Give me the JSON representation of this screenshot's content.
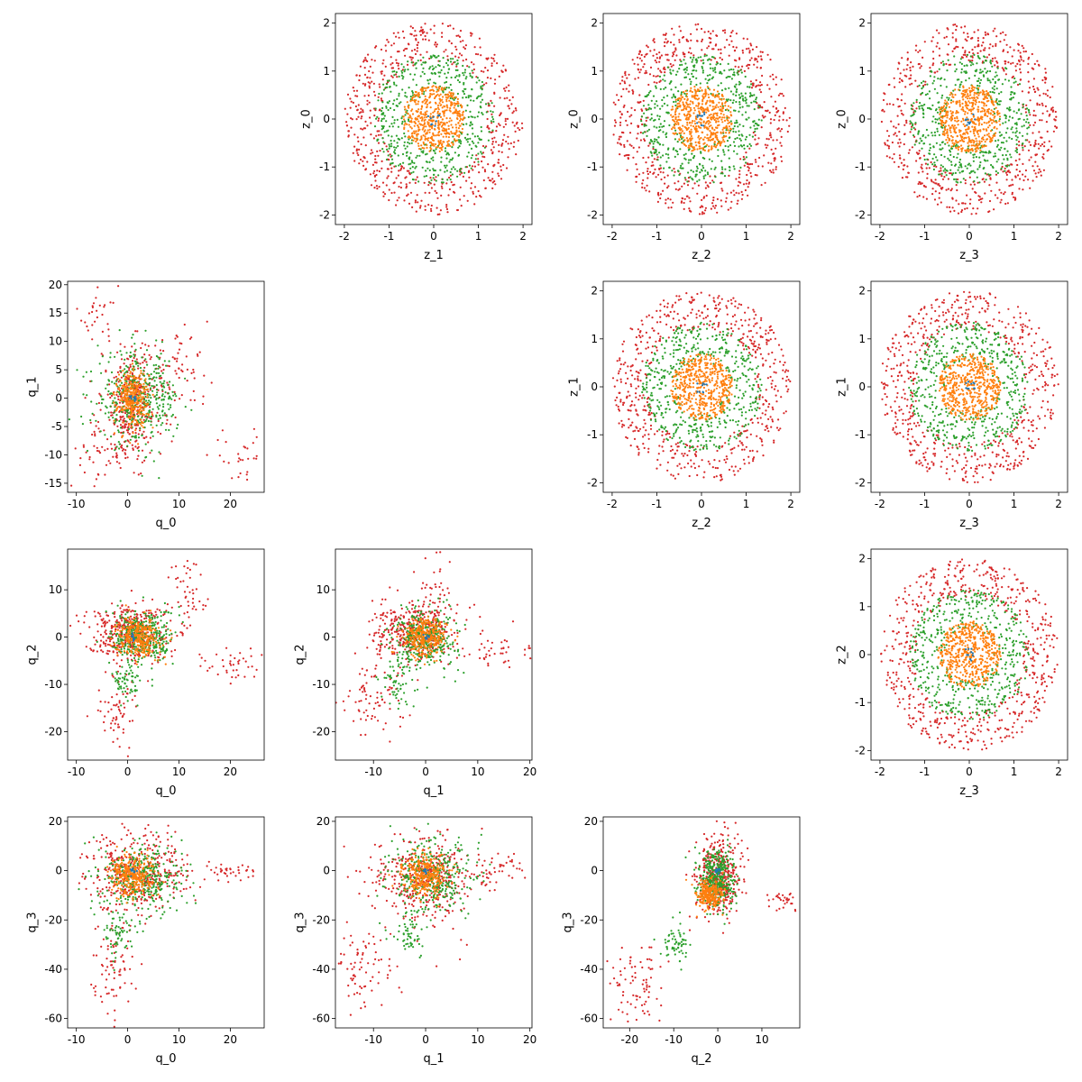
{
  "colors": {
    "red": "#d62728",
    "green": "#2ca02c",
    "orange": "#ff7f0e",
    "blue": "#1f77b4"
  },
  "chart_data": [
    {
      "id": "z0_z1",
      "type": "scatter",
      "kind": "rings",
      "xlabel": "z_1",
      "ylabel": "z_0",
      "xlim": [
        -2.2,
        2.2
      ],
      "ylim": [
        -2.2,
        2.2
      ],
      "xticks": [
        -2,
        -1,
        0,
        1,
        2
      ],
      "yticks": [
        -2,
        -1,
        0,
        1,
        2
      ],
      "series": [
        {
          "color": "red",
          "count": 600,
          "rmin": 1.2,
          "rmax": 2.0
        },
        {
          "color": "green",
          "count": 500,
          "rmin": 0.55,
          "rmax": 1.35
        },
        {
          "color": "orange",
          "count": 500,
          "rmin": 0,
          "rmax": 0.7
        },
        {
          "color": "blue",
          "count": 10,
          "rmin": 0,
          "rmax": 0.15
        }
      ]
    },
    {
      "id": "z0_z2",
      "type": "scatter",
      "kind": "rings",
      "xlabel": "z_2",
      "ylabel": "z_0",
      "xlim": [
        -2.2,
        2.2
      ],
      "ylim": [
        -2.2,
        2.2
      ],
      "xticks": [
        -2,
        -1,
        0,
        1,
        2
      ],
      "yticks": [
        -2,
        -1,
        0,
        1,
        2
      ],
      "series": [
        {
          "color": "red",
          "count": 600,
          "rmin": 1.2,
          "rmax": 2.0
        },
        {
          "color": "green",
          "count": 500,
          "rmin": 0.55,
          "rmax": 1.35
        },
        {
          "color": "orange",
          "count": 500,
          "rmin": 0,
          "rmax": 0.7
        },
        {
          "color": "blue",
          "count": 10,
          "rmin": 0,
          "rmax": 0.15
        }
      ]
    },
    {
      "id": "z0_z3",
      "type": "scatter",
      "kind": "rings",
      "xlabel": "z_3",
      "ylabel": "z_0",
      "xlim": [
        -2.2,
        2.2
      ],
      "ylim": [
        -2.2,
        2.2
      ],
      "xticks": [
        -2,
        -1,
        0,
        1,
        2
      ],
      "yticks": [
        -2,
        -1,
        0,
        1,
        2
      ],
      "series": [
        {
          "color": "red",
          "count": 600,
          "rmin": 1.2,
          "rmax": 2.0
        },
        {
          "color": "green",
          "count": 500,
          "rmin": 0.55,
          "rmax": 1.35
        },
        {
          "color": "orange",
          "count": 500,
          "rmin": 0,
          "rmax": 0.7
        },
        {
          "color": "blue",
          "count": 10,
          "rmin": 0,
          "rmax": 0.15
        }
      ]
    },
    {
      "id": "q1_q0",
      "type": "scatter",
      "kind": "blobs",
      "xlabel": "q_0",
      "ylabel": "q_1",
      "xlim": [
        -11.7,
        26.6
      ],
      "ylim": [
        -16.6,
        20.6
      ],
      "xticks": [
        -10,
        0,
        10,
        20
      ],
      "yticks": [
        -15,
        -10,
        -5,
        0,
        5,
        10,
        15,
        20
      ],
      "series": [
        {
          "color": "red",
          "blobs": [
            [
              1,
              -1,
              3,
              5,
              350
            ],
            [
              -6,
              14,
              2,
              3,
              30
            ],
            [
              22,
              -10,
              3,
              2,
              30
            ],
            [
              10,
              5,
              3,
              3,
              60
            ],
            [
              -5,
              -10,
              3,
              3,
              50
            ]
          ]
        },
        {
          "color": "green",
          "blobs": [
            [
              2,
              0,
              4,
              4,
              400
            ]
          ]
        },
        {
          "color": "orange",
          "blobs": [
            [
              1,
              0,
              1.5,
              2.5,
              300
            ]
          ]
        },
        {
          "color": "blue",
          "blobs": [
            [
              1,
              0,
              0.3,
              0.3,
              10
            ]
          ]
        }
      ]
    },
    {
      "id": "z1_z2",
      "type": "scatter",
      "kind": "rings",
      "xlabel": "z_2",
      "ylabel": "z_1",
      "xlim": [
        -2.2,
        2.2
      ],
      "ylim": [
        -2.2,
        2.2
      ],
      "xticks": [
        -2,
        -1,
        0,
        1,
        2
      ],
      "yticks": [
        -2,
        -1,
        0,
        1,
        2
      ],
      "series": [
        {
          "color": "red",
          "count": 600,
          "rmin": 1.2,
          "rmax": 2.0
        },
        {
          "color": "green",
          "count": 500,
          "rmin": 0.55,
          "rmax": 1.35
        },
        {
          "color": "orange",
          "count": 500,
          "rmin": 0,
          "rmax": 0.7
        },
        {
          "color": "blue",
          "count": 10,
          "rmin": 0,
          "rmax": 0.15
        }
      ]
    },
    {
      "id": "z1_z3",
      "type": "scatter",
      "kind": "rings",
      "xlabel": "z_3",
      "ylabel": "z_1",
      "xlim": [
        -2.2,
        2.2
      ],
      "ylim": [
        -2.2,
        2.2
      ],
      "xticks": [
        -2,
        -1,
        0,
        1,
        2
      ],
      "yticks": [
        -2,
        -1,
        0,
        1,
        2
      ],
      "series": [
        {
          "color": "red",
          "count": 600,
          "rmin": 1.2,
          "rmax": 2.0
        },
        {
          "color": "green",
          "count": 500,
          "rmin": 0.55,
          "rmax": 1.35
        },
        {
          "color": "orange",
          "count": 500,
          "rmin": 0,
          "rmax": 0.7
        },
        {
          "color": "blue",
          "count": 10,
          "rmin": 0,
          "rmax": 0.15
        }
      ]
    },
    {
      "id": "q2_q0",
      "type": "scatter",
      "kind": "blobs",
      "xlabel": "q_0",
      "ylabel": "q_2",
      "xlim": [
        -11.7,
        26.6
      ],
      "ylim": [
        -26.0,
        18.6
      ],
      "xticks": [
        -10,
        0,
        10,
        20
      ],
      "yticks": [
        -20,
        -10,
        0,
        10
      ],
      "series": [
        {
          "color": "red",
          "blobs": [
            [
              0,
              1,
              4,
              3,
              400
            ],
            [
              -2,
              -16,
              2,
              4,
              60
            ],
            [
              12,
              8,
              2,
              4,
              50
            ],
            [
              20,
              -6,
              3,
              2,
              40
            ]
          ]
        },
        {
          "color": "green",
          "blobs": [
            [
              3,
              0,
              3,
              3,
              350
            ],
            [
              0,
              -10,
              1.5,
              2,
              60
            ]
          ]
        },
        {
          "color": "orange",
          "blobs": [
            [
              2,
              0,
              2,
              2,
              300
            ]
          ]
        },
        {
          "color": "blue",
          "blobs": [
            [
              1,
              0,
              0.3,
              0.3,
              10
            ]
          ]
        }
      ]
    },
    {
      "id": "q2_q1",
      "type": "scatter",
      "kind": "blobs",
      "xlabel": "q_1",
      "ylabel": "q_2",
      "xlim": [
        -17.3,
        20.4
      ],
      "ylim": [
        -26.0,
        18.6
      ],
      "xticks": [
        -10,
        0,
        10,
        20
      ],
      "yticks": [
        -20,
        -10,
        0,
        10
      ],
      "series": [
        {
          "color": "red",
          "blobs": [
            [
              -2,
              1,
              4,
              3,
              400
            ],
            [
              -10,
              -12,
              3,
              5,
              80
            ],
            [
              2,
              10,
              1.5,
              4,
              40
            ],
            [
              14,
              -3,
              3,
              2,
              40
            ]
          ]
        },
        {
          "color": "green",
          "blobs": [
            [
              0,
              0,
              3,
              3,
              350
            ],
            [
              -5,
              -10,
              2,
              3,
              60
            ]
          ]
        },
        {
          "color": "orange",
          "blobs": [
            [
              0,
              0,
              2,
              2,
              300
            ]
          ]
        },
        {
          "color": "blue",
          "blobs": [
            [
              0,
              0,
              0.3,
              0.3,
              10
            ]
          ]
        }
      ]
    },
    {
      "id": "z2_z3",
      "type": "scatter",
      "kind": "rings",
      "xlabel": "z_3",
      "ylabel": "z_2",
      "xlim": [
        -2.2,
        2.2
      ],
      "ylim": [
        -2.2,
        2.2
      ],
      "xticks": [
        -2,
        -1,
        0,
        1,
        2
      ],
      "yticks": [
        -2,
        -1,
        0,
        1,
        2
      ],
      "series": [
        {
          "color": "red",
          "count": 600,
          "rmin": 1.2,
          "rmax": 2.0
        },
        {
          "color": "green",
          "count": 500,
          "rmin": 0.55,
          "rmax": 1.35
        },
        {
          "color": "orange",
          "count": 500,
          "rmin": 0,
          "rmax": 0.7
        },
        {
          "color": "blue",
          "count": 10,
          "rmin": 0,
          "rmax": 0.15
        }
      ]
    },
    {
      "id": "q3_q0",
      "type": "scatter",
      "kind": "blobs",
      "xlabel": "q_0",
      "ylabel": "q_3",
      "xlim": [
        -11.7,
        26.6
      ],
      "ylim": [
        -63.8,
        21.8
      ],
      "xticks": [
        -10,
        0,
        10,
        20
      ],
      "yticks": [
        -60,
        -40,
        -20,
        0,
        20
      ],
      "series": [
        {
          "color": "red",
          "blobs": [
            [
              2,
              0,
              5,
              8,
              400
            ],
            [
              -3,
              -40,
              2,
              10,
              80
            ],
            [
              20,
              -1,
              3,
              1.5,
              40
            ]
          ]
        },
        {
          "color": "green",
          "blobs": [
            [
              3,
              -3,
              4,
              7,
              350
            ],
            [
              -2,
              -25,
              1.5,
              5,
              60
            ]
          ]
        },
        {
          "color": "orange",
          "blobs": [
            [
              1,
              -2,
              2,
              4,
              300
            ]
          ]
        },
        {
          "color": "blue",
          "blobs": [
            [
              1,
              0,
              0.3,
              0.6,
              10
            ]
          ]
        }
      ]
    },
    {
      "id": "q3_q1",
      "type": "scatter",
      "kind": "blobs",
      "xlabel": "q_1",
      "ylabel": "q_3",
      "xlim": [
        -17.3,
        20.4
      ],
      "ylim": [
        -63.8,
        21.8
      ],
      "xticks": [
        -10,
        0,
        10,
        20
      ],
      "yticks": [
        -60,
        -40,
        -20,
        0,
        20
      ],
      "series": [
        {
          "color": "red",
          "blobs": [
            [
              0,
              -3,
              5,
              9,
              400
            ],
            [
              -12,
              -40,
              3,
              8,
              80
            ],
            [
              15,
              0,
              3,
              3,
              40
            ]
          ]
        },
        {
          "color": "green",
          "blobs": [
            [
              1,
              -2,
              4,
              7,
              350
            ],
            [
              -3,
              -25,
              2,
              5,
              60
            ]
          ]
        },
        {
          "color": "orange",
          "blobs": [
            [
              0,
              -2,
              2,
              4,
              300
            ]
          ]
        },
        {
          "color": "blue",
          "blobs": [
            [
              0,
              0,
              0.3,
              0.6,
              10
            ]
          ]
        }
      ]
    },
    {
      "id": "q3_q2",
      "type": "scatter",
      "kind": "blobs",
      "xlabel": "q_2",
      "ylabel": "q_3",
      "xlim": [
        -26.0,
        18.6
      ],
      "ylim": [
        -63.8,
        21.8
      ],
      "xticks": [
        -20,
        -10,
        0,
        10
      ],
      "yticks": [
        -60,
        -40,
        -20,
        0,
        20
      ],
      "series": [
        {
          "color": "red",
          "blobs": [
            [
              0,
              -2,
              2.5,
              8,
              400
            ],
            [
              -18,
              -45,
              3,
              8,
              80
            ],
            [
              15,
              -12,
              1.5,
              2,
              30
            ]
          ]
        },
        {
          "color": "green",
          "blobs": [
            [
              0,
              -3,
              2,
              6,
              350
            ],
            [
              -10,
              -30,
              2,
              4,
              60
            ]
          ]
        },
        {
          "color": "orange",
          "blobs": [
            [
              -2,
              -10,
              1.5,
              3,
              250
            ]
          ]
        },
        {
          "color": "blue",
          "blobs": [
            [
              0,
              0,
              0.3,
              0.6,
              10
            ]
          ]
        }
      ]
    }
  ]
}
